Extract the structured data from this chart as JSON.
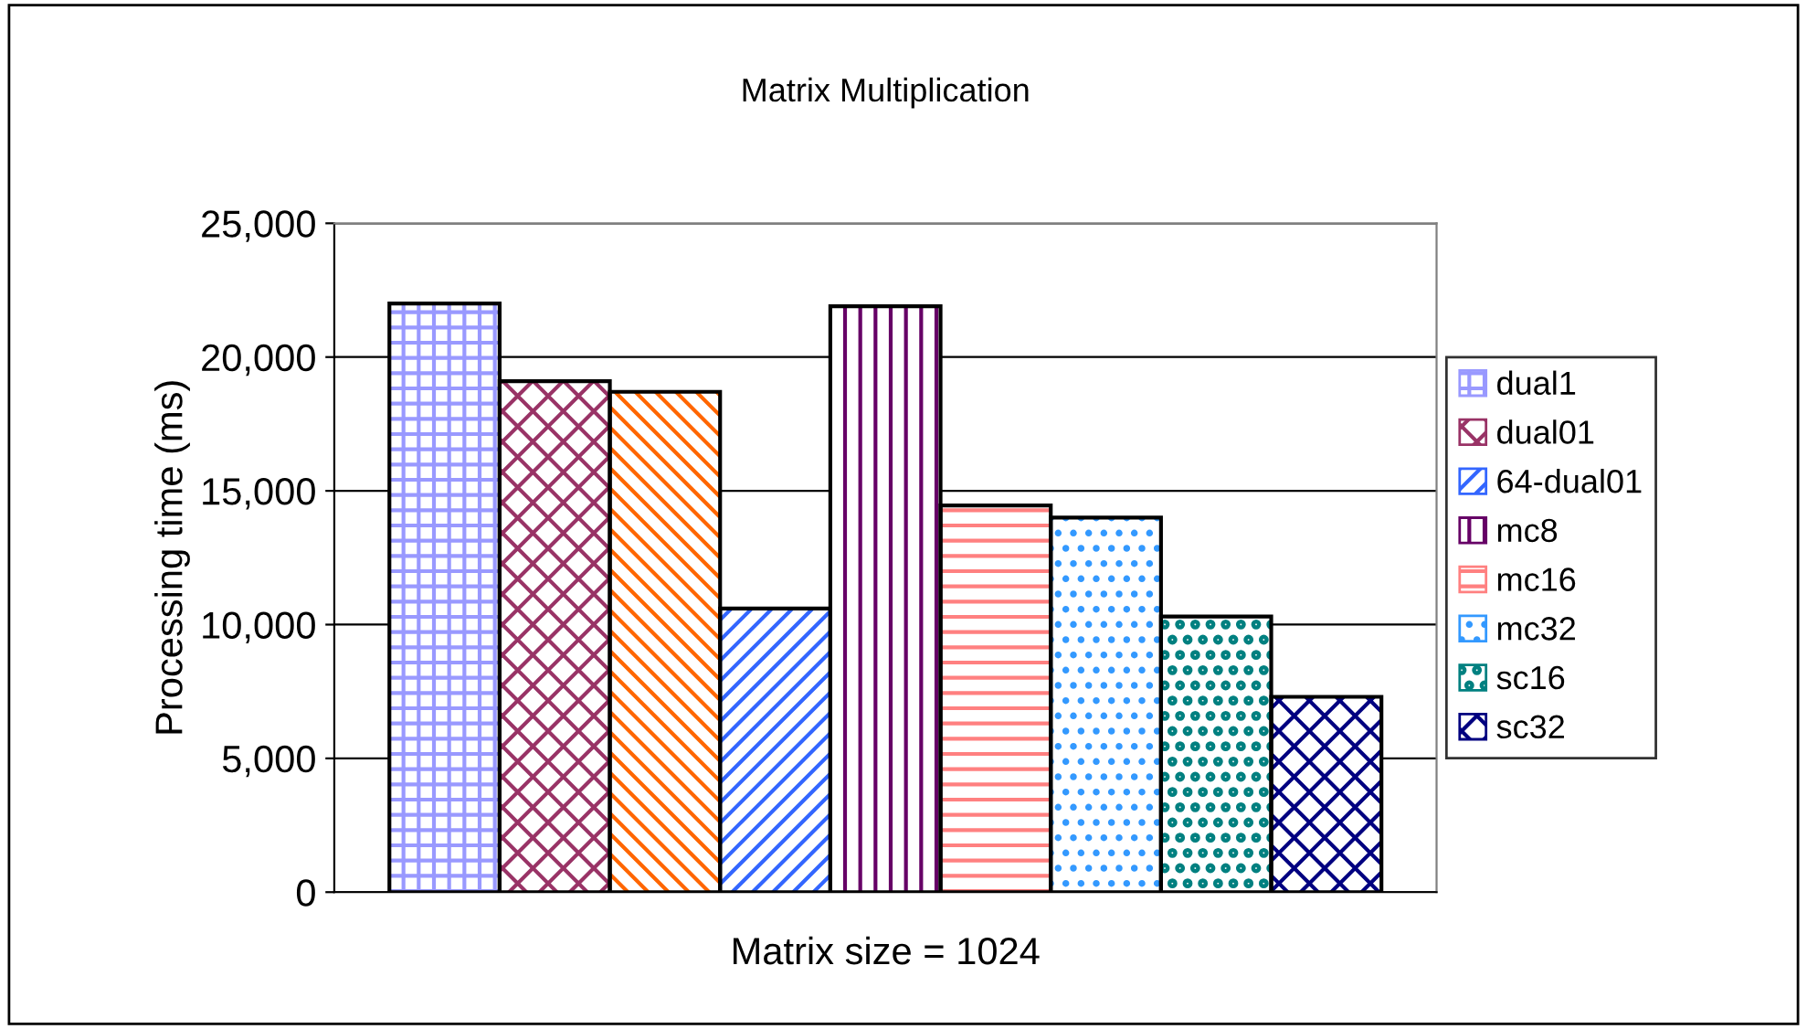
{
  "chart_data": {
    "type": "bar",
    "title": "Matrix Multiplication",
    "xlabel": "Matrix size = 1024",
    "ylabel": "Processing time (ms)",
    "categories": [
      null
    ],
    "series": [
      {
        "name": "dual1",
        "color": "#9999ff",
        "values": [
          22000
        ]
      },
      {
        "name": "dual01",
        "color": "#993366",
        "values": [
          19100
        ]
      },
      {
        "color": "#ff6600",
        "values": [
          18700
        ]
      },
      {
        "name": "64-dual01",
        "color": "#3366ff",
        "values": [
          10600
        ]
      },
      {
        "name": "mc8",
        "color": "#660066",
        "values": [
          21900
        ]
      },
      {
        "name": "mc16",
        "color": "#ff8080",
        "values": [
          14450
        ]
      },
      {
        "name": "mc32",
        "color": "#3399ff",
        "values": [
          14000
        ]
      },
      {
        "name": "sc16",
        "color": "#008080",
        "values": [
          10300
        ]
      },
      {
        "name": "sc32",
        "color": "#000080",
        "values": [
          7300
        ]
      }
    ],
    "ylim": [
      0,
      25000
    ],
    "yticks": [
      {
        "value": 0,
        "label": "0"
      },
      {
        "value": 5000,
        "label": "5,000"
      },
      {
        "value": 10000,
        "label": "10,000"
      },
      {
        "value": 15000,
        "label": "15,000"
      },
      {
        "value": 20000,
        "label": "20,000"
      },
      {
        "value": 25000,
        "label": "25,000"
      }
    ],
    "grid": "y",
    "legend": "right"
  }
}
